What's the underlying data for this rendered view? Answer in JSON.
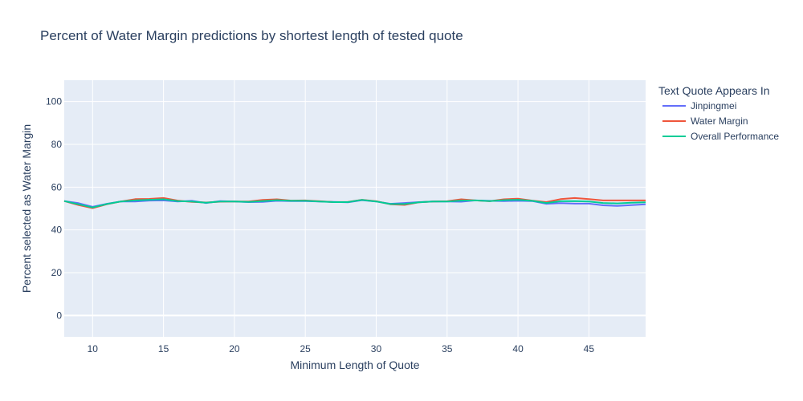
{
  "chart_data": {
    "type": "line",
    "title": "Percent of Water Margin predictions by shortest length of tested quote",
    "xlabel": "Minimum Length of Quote",
    "ylabel": "Percent selected as Water Margin",
    "xlim": [
      8,
      49
    ],
    "ylim": [
      -10,
      110
    ],
    "x_ticks": [
      10,
      15,
      20,
      25,
      30,
      35,
      40,
      45
    ],
    "y_ticks": [
      0,
      20,
      40,
      60,
      80,
      100
    ],
    "grid": true,
    "legend_title": "Text Quote Appears In",
    "legend_position": "right",
    "x": [
      8,
      9,
      10,
      11,
      12,
      13,
      14,
      15,
      16,
      17,
      18,
      19,
      20,
      21,
      22,
      23,
      24,
      25,
      26,
      27,
      28,
      29,
      30,
      31,
      32,
      33,
      34,
      35,
      36,
      37,
      38,
      39,
      40,
      41,
      42,
      43,
      44,
      45,
      46,
      47,
      48,
      49
    ],
    "series": [
      {
        "name": "Jinpingmei",
        "color": "#636efa",
        "values": [
          53.5,
          52.5,
          50.8,
          52.2,
          53.3,
          53.3,
          53.7,
          53.8,
          53.3,
          53.6,
          52.6,
          53.5,
          53.3,
          53.0,
          53.1,
          53.6,
          53.5,
          53.5,
          53.3,
          53.1,
          52.9,
          53.9,
          53.3,
          52.2,
          52.6,
          53.0,
          53.3,
          53.3,
          53.2,
          53.8,
          53.6,
          53.5,
          53.6,
          53.5,
          52.2,
          52.5,
          52.3,
          52.3,
          51.5,
          51.2,
          51.6,
          52.0
        ]
      },
      {
        "name": "Water Margin",
        "color": "#ef553b",
        "values": [
          53.5,
          51.6,
          50.2,
          52.0,
          53.3,
          54.4,
          54.5,
          54.9,
          53.7,
          53.1,
          52.8,
          53.2,
          53.3,
          53.3,
          54.0,
          54.3,
          53.7,
          53.8,
          53.4,
          53.0,
          53.1,
          54.1,
          53.4,
          52.0,
          51.7,
          52.9,
          53.3,
          53.4,
          54.3,
          53.8,
          53.4,
          54.3,
          54.6,
          53.7,
          53.0,
          54.4,
          54.9,
          54.4,
          53.8,
          53.8,
          53.8,
          53.8
        ]
      },
      {
        "name": "Overall Performance",
        "color": "#00cc96",
        "values": [
          53.5,
          52.0,
          50.5,
          52.1,
          53.3,
          53.8,
          54.1,
          54.3,
          53.5,
          53.3,
          52.7,
          53.3,
          53.3,
          53.1,
          53.5,
          53.9,
          53.6,
          53.6,
          53.3,
          53.0,
          53.0,
          54.0,
          53.3,
          52.1,
          52.1,
          52.9,
          53.3,
          53.3,
          53.7,
          53.8,
          53.5,
          53.9,
          54.1,
          53.6,
          52.6,
          53.4,
          53.5,
          53.3,
          52.6,
          52.4,
          52.7,
          52.9
        ]
      }
    ]
  }
}
